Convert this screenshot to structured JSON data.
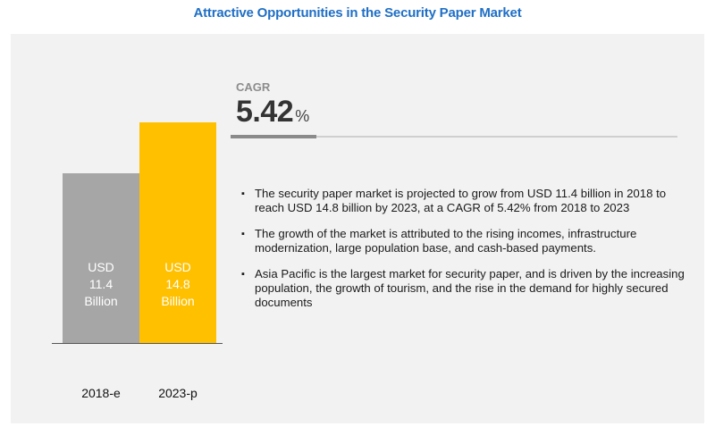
{
  "title": "Attractive Opportunities in the Security Paper Market",
  "chart_data": {
    "type": "bar",
    "categories": [
      "2018-e",
      "2023-p"
    ],
    "values": [
      11.4,
      14.8
    ],
    "bar_labels": [
      [
        "USD",
        "11.4",
        "Billion"
      ],
      [
        "USD",
        "14.8",
        "Billion"
      ]
    ],
    "colors": [
      "#a6a6a6",
      "#ffc000"
    ],
    "ylim": [
      0,
      16.2
    ],
    "grid": false
  },
  "cagr": {
    "label": "CAGR",
    "value": "5.42",
    "unit": "%"
  },
  "bullets": [
    "The security paper market is projected to grow from USD 11.4 billion in 2018 to reach USD 14.8 billion by 2023, at a CAGR of 5.42% from 2018 to 2023",
    "The growth of the market is attributed to the rising incomes, infrastructure modernization, large population base, and cash-based payments.",
    "Asia Pacific is the largest market for security paper, and is driven by the increasing population, the growth of tourism, and the rise in the demand for highly secured documents"
  ]
}
